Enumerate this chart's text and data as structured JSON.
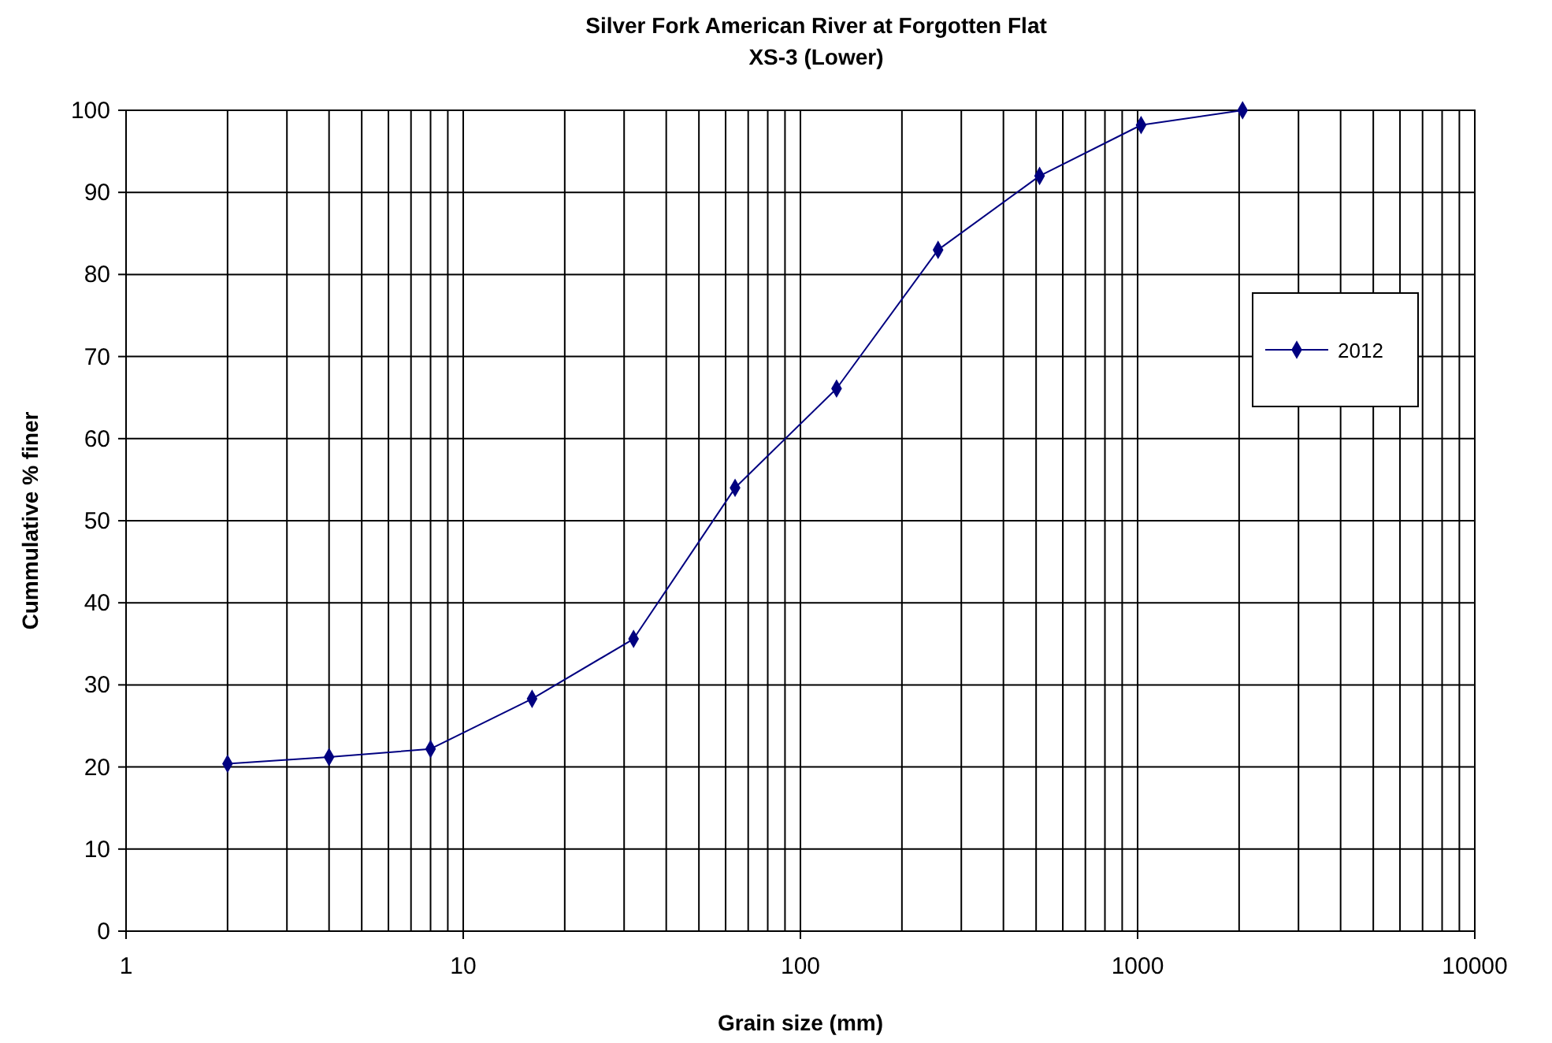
{
  "chart_data": {
    "type": "line",
    "title": "Silver Fork American River at Forgotten Flat",
    "subtitle": "XS-3 (Lower)",
    "xlabel": "Grain size (mm)",
    "ylabel": "Cummulative % finer",
    "log": "x",
    "x": [
      2,
      4,
      8,
      16,
      32,
      64,
      128,
      256,
      512,
      1024,
      2048
    ],
    "series": [
      {
        "name": "2012",
        "color": "#000080",
        "values": [
          20.4,
          21.2,
          22.2,
          28.3,
          35.6,
          54,
          66.1,
          83,
          92,
          98.2,
          100
        ]
      }
    ],
    "xlim": [
      1,
      10000
    ],
    "xticks": [
      1,
      {
        "value": 2,
        "label": null
      },
      {
        "value": 3,
        "label": null
      },
      {
        "value": 4,
        "label": null
      },
      {
        "value": 5,
        "label": null
      },
      {
        "value": 6,
        "label": null
      },
      {
        "value": 7,
        "label": null
      },
      {
        "value": 8,
        "label": null
      },
      {
        "value": 9,
        "label": null
      },
      10,
      {
        "value": 20,
        "label": null
      },
      {
        "value": 30,
        "label": null
      },
      {
        "value": 40,
        "label": null
      },
      {
        "value": 50,
        "label": null
      },
      {
        "value": 60,
        "label": null
      },
      {
        "value": 70,
        "label": null
      },
      {
        "value": 80,
        "label": null
      },
      {
        "value": 90,
        "label": null
      },
      100,
      {
        "value": 200,
        "label": null
      },
      {
        "value": 300,
        "label": null
      },
      {
        "value": 400,
        "label": null
      },
      {
        "value": 500,
        "label": null
      },
      {
        "value": 600,
        "label": null
      },
      {
        "value": 700,
        "label": null
      },
      {
        "value": 800,
        "label": null
      },
      {
        "value": 900,
        "label": null
      },
      1000,
      {
        "value": 2000,
        "label": null
      },
      {
        "value": 3000,
        "label": null
      },
      {
        "value": 4000,
        "label": null
      },
      {
        "value": 5000,
        "label": null
      },
      {
        "value": 6000,
        "label": null
      },
      {
        "value": 7000,
        "label": null
      },
      {
        "value": 8000,
        "label": null
      },
      {
        "value": 9000,
        "label": null
      },
      10000
    ],
    "ylim": [
      0,
      100
    ],
    "yticks": [
      0,
      10,
      20,
      30,
      40,
      50,
      60,
      70,
      80,
      90,
      100
    ],
    "grid": true,
    "legend": "right",
    "marker": "diamond",
    "line_style": "solid"
  }
}
